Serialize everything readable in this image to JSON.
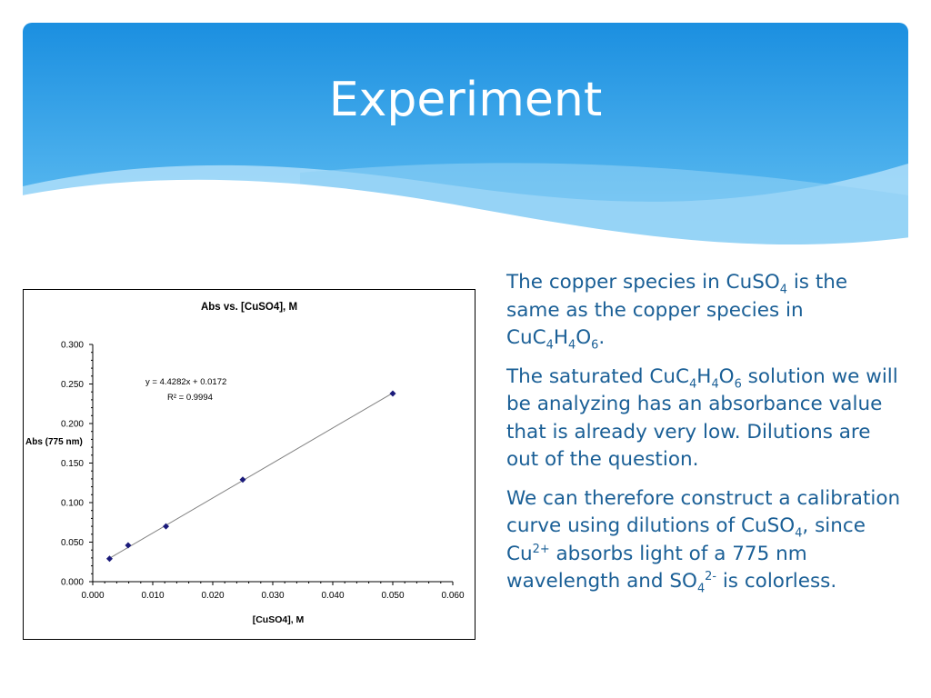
{
  "slide": {
    "title": "Experiment",
    "accent_color": "#1a5f96",
    "paragraphs": [
      [
        {
          "t": "The copper species in CuSO"
        },
        {
          "sub": "4"
        },
        {
          "t": " is the same as the copper species in CuC"
        },
        {
          "sub": "4"
        },
        {
          "t": "H"
        },
        {
          "sub": "4"
        },
        {
          "t": "O"
        },
        {
          "sub": "6"
        },
        {
          "t": "."
        }
      ],
      [
        {
          "t": "The saturated CuC"
        },
        {
          "sub": "4"
        },
        {
          "t": "H"
        },
        {
          "sub": "4"
        },
        {
          "t": "O"
        },
        {
          "sub": "6"
        },
        {
          "t": " solution we will be analyzing has an absorbance value that is already very low.  Dilutions are out of the question."
        }
      ],
      [
        {
          "t": "We can therefore construct a calibration curve using dilutions of CuSO"
        },
        {
          "sub": "4"
        },
        {
          "t": ", since Cu"
        },
        {
          "sup": "2+"
        },
        {
          "t": " absorbs light of a 775 nm wavelength and SO"
        },
        {
          "sub": "4"
        },
        {
          "sup": "2-"
        },
        {
          "t": " is colorless."
        }
      ]
    ]
  },
  "chart_data": {
    "type": "scatter",
    "title": "Abs vs. [CuSO4], M",
    "xlabel": "[CuSO4], M",
    "ylabel": "Abs (775 nm)",
    "xlim": [
      0,
      0.06
    ],
    "ylim": [
      0,
      0.3
    ],
    "x_ticks": [
      "0.000",
      "0.010",
      "0.020",
      "0.030",
      "0.040",
      "0.050",
      "0.060"
    ],
    "y_ticks": [
      "0.000",
      "0.050",
      "0.100",
      "0.150",
      "0.200",
      "0.250",
      "0.300"
    ],
    "x_tick_values": [
      0,
      0.01,
      0.02,
      0.03,
      0.04,
      0.05,
      0.06
    ],
    "y_tick_values": [
      0,
      0.05,
      0.1,
      0.15,
      0.2,
      0.25,
      0.3
    ],
    "points": [
      {
        "x": 0.0028,
        "y": 0.029
      },
      {
        "x": 0.0059,
        "y": 0.046
      },
      {
        "x": 0.0122,
        "y": 0.07
      },
      {
        "x": 0.025,
        "y": 0.129
      },
      {
        "x": 0.05,
        "y": 0.238
      }
    ],
    "trendline": {
      "slope": 4.4282,
      "intercept": 0.0172,
      "x_range": [
        0.0028,
        0.05
      ]
    },
    "equation": "y = 4.4282x + 0.0172",
    "r2_text": "R² = 0.9994",
    "marker_color": "#1a1a7a",
    "line_color": "#808080",
    "grid": false
  }
}
